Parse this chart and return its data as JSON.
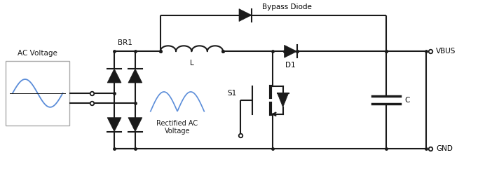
{
  "background_color": "#ffffff",
  "line_color": "#1a1a1a",
  "line_width": 1.5,
  "blue_color": "#5b8dd9",
  "text_color": "#1a1a1a",
  "labels": {
    "ac_voltage": "AC Voltage",
    "br1": "BR1",
    "bypass_diode": "Bypass Diode",
    "L": "L",
    "D1": "D1",
    "S1": "S1",
    "C": "C",
    "VBUS": "VBUS",
    "GND": "GND",
    "rectified": "Rectified AC\nVoltage"
  },
  "figsize": [
    6.92,
    2.41
  ],
  "dpi": 100
}
